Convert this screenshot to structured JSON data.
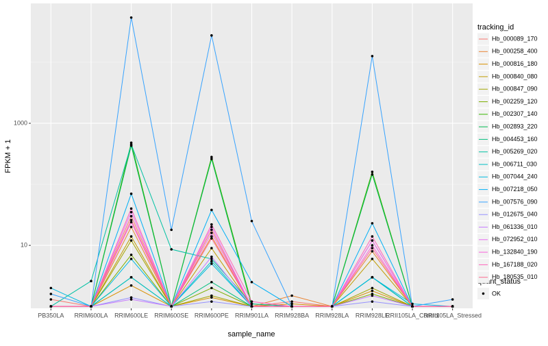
{
  "chart_data": {
    "type": "line",
    "x_label": "sample_name",
    "y_label": "FPKM + 1",
    "log_scale": true,
    "grid": true,
    "ylim": [
      0.93,
      92000
    ],
    "yticks": [
      10,
      1000
    ],
    "y_minor_ticks": [
      100,
      10000
    ],
    "legend_title": "tracking_id",
    "points_legend_title": "quant_status",
    "points_legend_label": "OK",
    "categories": [
      "PB350LA",
      "RRIM600LA",
      "RRIM600LE",
      "RRIM600SE",
      "RRIM600PE",
      "RRIM901LA",
      "RRIM928BA",
      "RRIM928LA",
      "RRIM928LE",
      "RRII105LA_Control",
      "RRII105LA_Stressed"
    ],
    "series": [
      {
        "name": "Hb_000089_170",
        "color": "#F8766D",
        "values": [
          1.3,
          1.0,
          30,
          1.0,
          18,
          1.0,
          1.2,
          1.0,
          12,
          1.0,
          1.0
        ]
      },
      {
        "name": "Hb_000258_400",
        "color": "#EA8331",
        "values": [
          1.0,
          1.0,
          20,
          1.0,
          14,
          1.0,
          1.5,
          1.0,
          8,
          1.0,
          1.0
        ]
      },
      {
        "name": "Hb_000816_180",
        "color": "#D89000",
        "values": [
          1.0,
          1.0,
          2.2,
          1.0,
          1.4,
          1.0,
          1.1,
          1.0,
          1.8,
          1.0,
          1.0
        ]
      },
      {
        "name": "Hb_000840_080",
        "color": "#C09B00",
        "values": [
          1.0,
          1.0,
          14,
          1.0,
          9,
          1.0,
          1.0,
          1.0,
          6,
          1.0,
          1.0
        ]
      },
      {
        "name": "Hb_000847_090",
        "color": "#A3A500",
        "values": [
          1.0,
          1.0,
          12,
          1.0,
          1.5,
          1.0,
          1.0,
          1.0,
          2,
          1.0,
          1.0
        ]
      },
      {
        "name": "Hb_002259_120",
        "color": "#7CAE00",
        "values": [
          1.0,
          1.0,
          7,
          1.0,
          2.0,
          1.0,
          1.0,
          1.0,
          1.6,
          1.0,
          1.0
        ]
      },
      {
        "name": "Hb_002307_140",
        "color": "#39B600",
        "values": [
          1.0,
          1.0,
          480,
          1.0,
          280,
          1.1,
          1.0,
          1.0,
          160,
          1.0,
          1.0
        ]
      },
      {
        "name": "Hb_002893_220",
        "color": "#00BB4E",
        "values": [
          1.0,
          1.0,
          430,
          1.0,
          260,
          1.0,
          1.0,
          1.0,
          145,
          1.0,
          1.0
        ]
      },
      {
        "name": "Hb_004453_160",
        "color": "#00BF7D",
        "values": [
          1.0,
          1.0,
          3.0,
          1.0,
          2.5,
          1.0,
          1.0,
          1.0,
          3,
          1.0,
          1.0
        ]
      },
      {
        "name": "Hb_005269_020",
        "color": "#00C1A3",
        "values": [
          1.0,
          2.6,
          450,
          8.6,
          6,
          1.1,
          1.0,
          1.0,
          3.0,
          1.0,
          1.0
        ]
      },
      {
        "name": "Hb_006711_030",
        "color": "#00BFC4",
        "values": [
          1.0,
          1.0,
          3.0,
          1.0,
          5.5,
          1.0,
          1.0,
          1.0,
          3,
          1.0,
          1.0
        ]
      },
      {
        "name": "Hb_007044_240",
        "color": "#00BAE0",
        "values": [
          2.0,
          1.0,
          6,
          1.0,
          5,
          1.0,
          1.0,
          1.0,
          3,
          1.1,
          1.0
        ]
      },
      {
        "name": "Hb_007218_050",
        "color": "#00B0F6",
        "values": [
          1.0,
          1.0,
          70,
          1.0,
          38,
          2.5,
          1.0,
          1.0,
          23,
          1.0,
          1.0
        ]
      },
      {
        "name": "Hb_007576_090",
        "color": "#35A2FF",
        "values": [
          1.6,
          1.0,
          54000,
          18,
          27500,
          25,
          1.0,
          1.0,
          12600,
          1.0,
          1.3
        ]
      },
      {
        "name": "Hb_012675_040",
        "color": "#9590FF",
        "values": [
          1.0,
          1.0,
          1.4,
          1.0,
          1.2,
          1.0,
          1.0,
          1.0,
          1.2,
          1.0,
          1.0
        ]
      },
      {
        "name": "Hb_061336_010",
        "color": "#C77CFF",
        "values": [
          1.0,
          1.0,
          1.3,
          1.0,
          6.5,
          1.0,
          1.0,
          1.0,
          1.5,
          1.0,
          1.0
        ]
      },
      {
        "name": "Hb_072952_010",
        "color": "#E76BF3",
        "values": [
          1.0,
          1.0,
          35,
          1.0,
          20,
          1.0,
          1.0,
          1.0,
          12,
          1.0,
          1.0
        ]
      },
      {
        "name": "Hb_132840_190",
        "color": "#FA62DB",
        "values": [
          1.0,
          1.0,
          24,
          1.0,
          16,
          1.0,
          1.0,
          1.0,
          10,
          1.0,
          1.0
        ]
      },
      {
        "name": "Hb_167188_020",
        "color": "#FF62BC",
        "values": [
          1.0,
          1.0,
          40,
          1.0,
          22,
          1.2,
          1.0,
          1.0,
          14,
          1.0,
          1.0
        ]
      },
      {
        "name": "Hb_180535_010",
        "color": "#FF6C91",
        "values": [
          1.0,
          1.0,
          26,
          1.0,
          13,
          1.0,
          1.0,
          1.0,
          9,
          1.0,
          1.0
        ]
      }
    ]
  }
}
